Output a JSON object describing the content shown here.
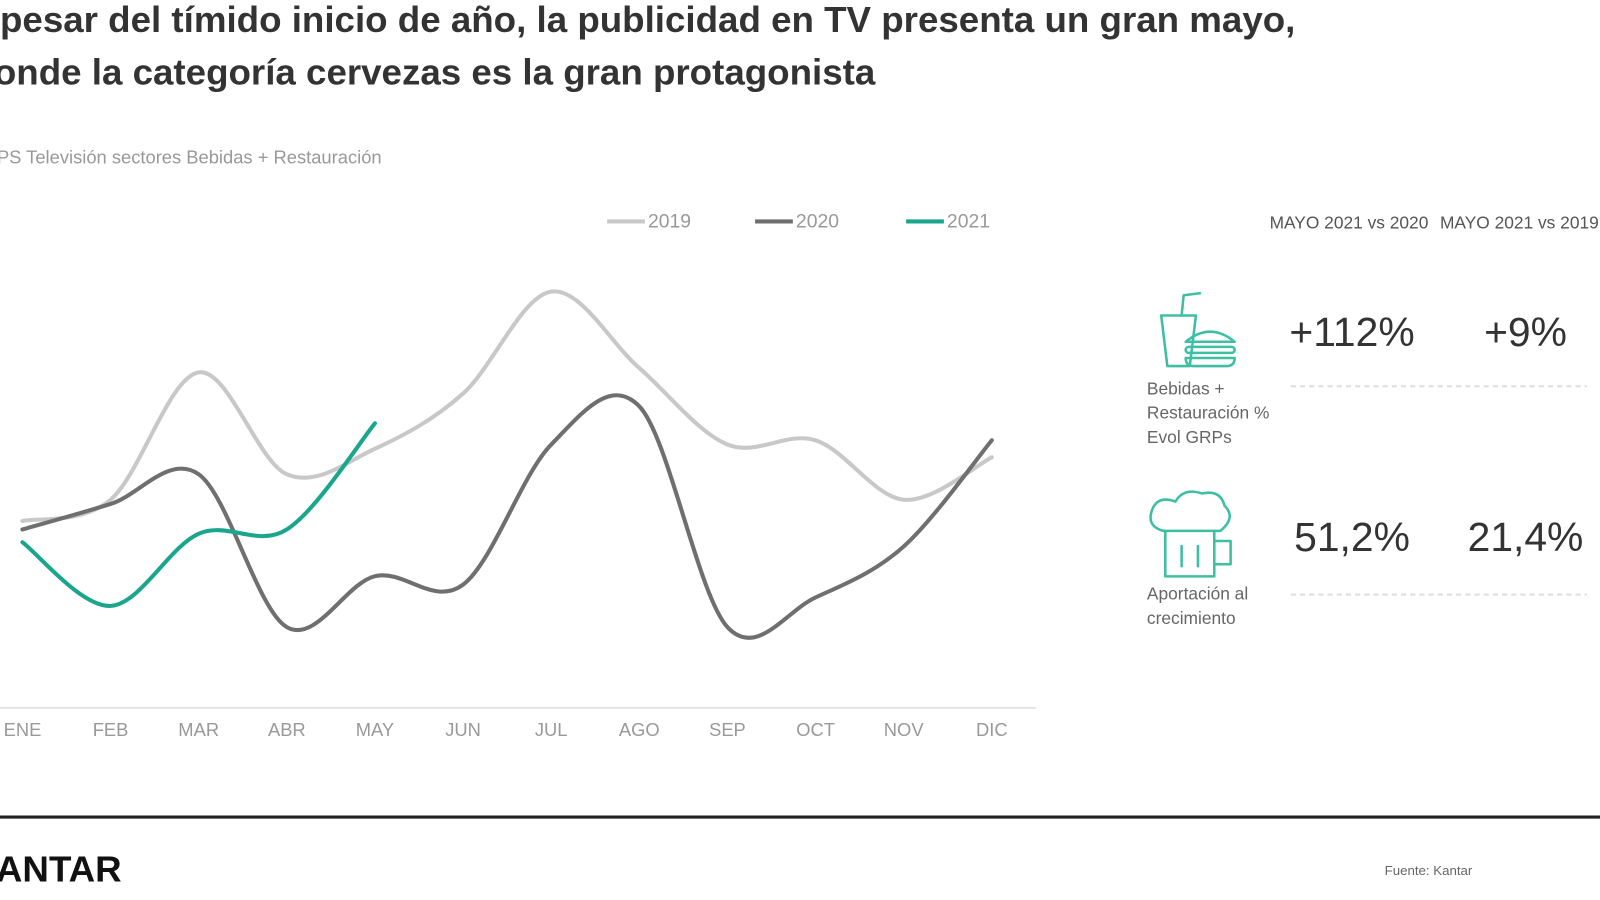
{
  "header": {
    "title_lines": [
      "pesar del tímido inicio de año, la publicidad en TV presenta un gran mayo,",
      "onde la categoría cervezas es la gran protagonista"
    ]
  },
  "chart_data": {
    "type": "line",
    "subtitle": "PS Televisión sectores Bebidas + Restauración",
    "categories": [
      "ENE",
      "FEB",
      "MAR",
      "ABR",
      "MAY",
      "JUN",
      "JUL",
      "AGO",
      "SEP",
      "OCT",
      "NOV",
      "DIC"
    ],
    "series": [
      {
        "name": "2019",
        "color": "#c8c8c8",
        "values": [
          44,
          49,
          79,
          55,
          61,
          74,
          98,
          80,
          62,
          63,
          49,
          59
        ]
      },
      {
        "name": "2020",
        "color": "#6f6f6f",
        "values": [
          42,
          48,
          55,
          19,
          31,
          29,
          62,
          71,
          19,
          26,
          38,
          63
        ]
      },
      {
        "name": "2021",
        "color": "#1aa58d",
        "values": [
          39,
          24,
          41,
          42,
          67,
          null,
          null,
          null,
          null,
          null,
          null,
          null
        ]
      }
    ],
    "ylim": [
      0,
      100
    ],
    "legend": "top"
  },
  "stats": {
    "headers": [
      "MAYO 2021 vs 2020",
      "MAYO 2021 vs 2019"
    ],
    "rows": [
      {
        "label": "Bebidas + Restauración % Evol GRPs",
        "values": [
          "+112%",
          "+9%"
        ]
      },
      {
        "label": "Aportación al crecimiento",
        "values": [
          "51,2%",
          "21,4%"
        ]
      }
    ]
  },
  "footer": {
    "logo": "ANTAR",
    "source": "Fuente: Kantar"
  }
}
